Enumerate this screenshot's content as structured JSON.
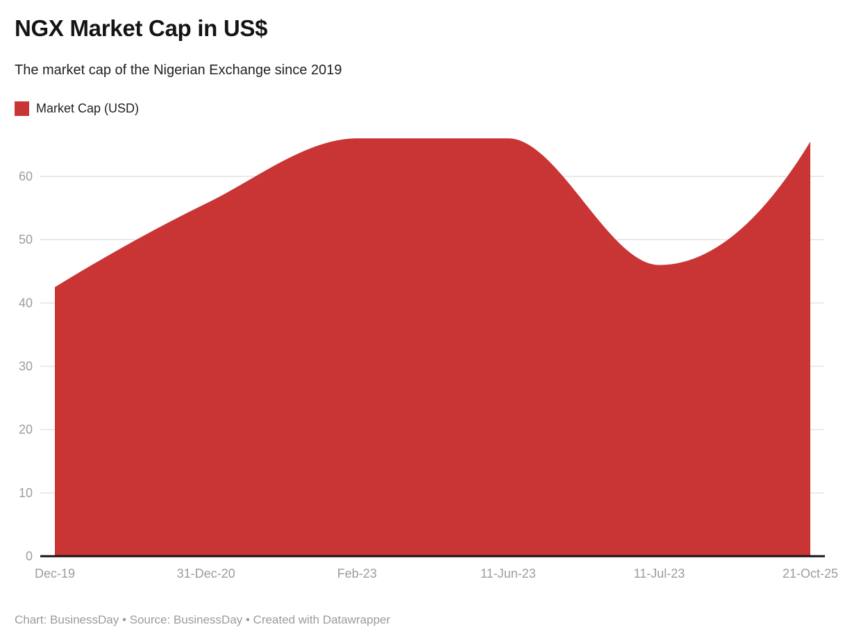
{
  "header": {
    "title": "NGX Market Cap in US$",
    "subtitle": "The market cap of the Nigerian Exchange since 2019"
  },
  "legend": {
    "items": [
      {
        "label": "Market Cap (USD)",
        "color": "#c93434"
      }
    ]
  },
  "chart_data": {
    "type": "area",
    "title": "NGX Market Cap in US$",
    "xlabel": "",
    "ylabel": "",
    "categories": [
      "Dec-19",
      "31-Dec-20",
      "Feb-23",
      "11-Jun-23",
      "11-Jul-23",
      "21-Oct-25"
    ],
    "series": [
      {
        "name": "Market Cap (USD)",
        "color": "#c93434",
        "values": [
          42.5,
          55.7,
          66,
          66,
          46,
          65.5
        ]
      }
    ],
    "yticks": [
      0,
      10,
      20,
      30,
      40,
      50,
      60
    ],
    "ylim": [
      0,
      67
    ],
    "grid": true,
    "interpolation": "monotone",
    "legend_position": "top-left",
    "baseline_value": 0
  },
  "colors": {
    "accent": "#c93434",
    "axis_text": "#9c9c9c",
    "gridline": "#e2e2e2",
    "baseline": "#141414",
    "title_text": "#141414",
    "body_text": "#202022",
    "footer_text": "#9b9b9b"
  },
  "footer": {
    "text": "Chart: BusinessDay • Source: BusinessDay • Created with Datawrapper"
  }
}
